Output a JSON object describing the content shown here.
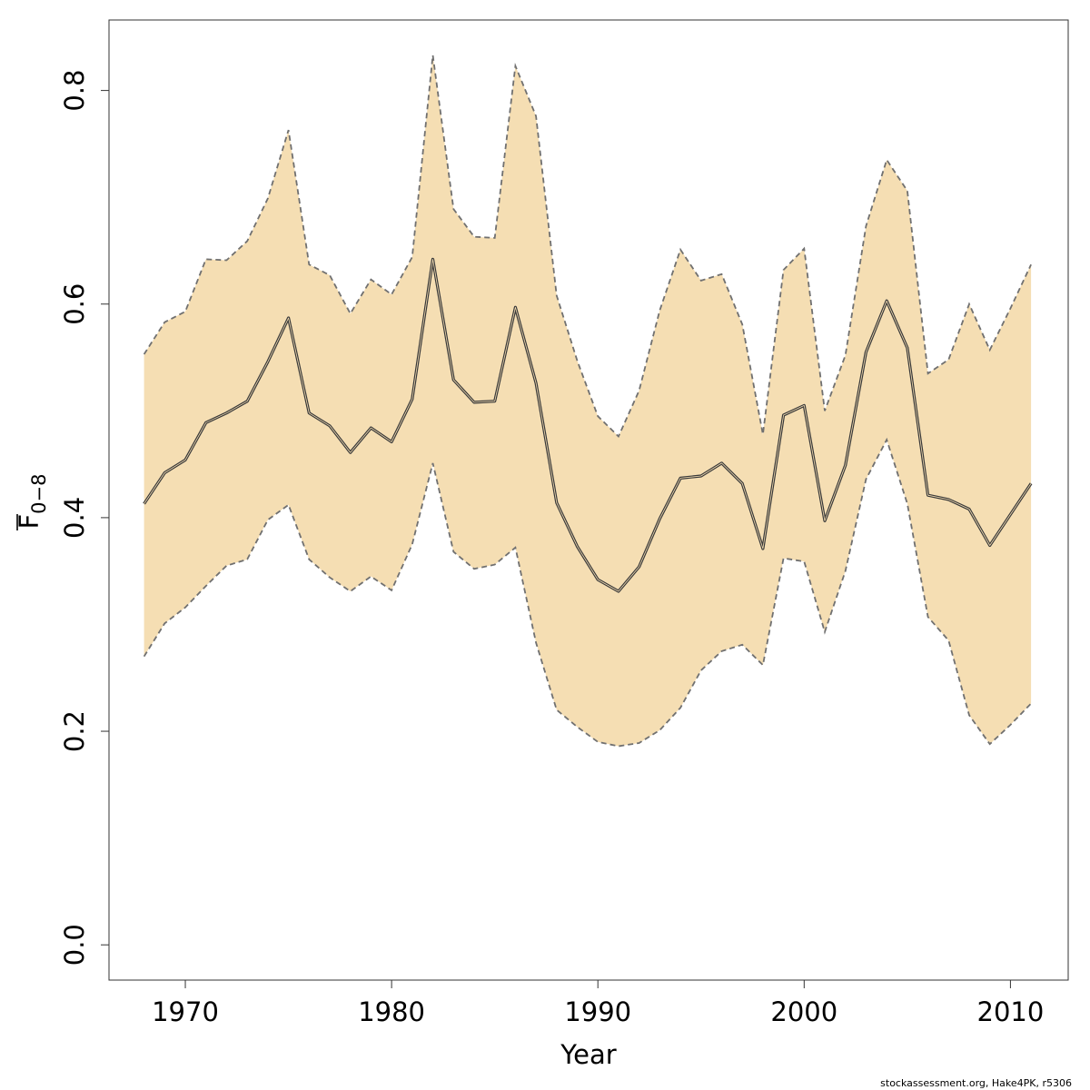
{
  "chart_data": {
    "type": "area",
    "title": "",
    "xlabel": "Year",
    "ylabel_main": "F",
    "ylabel_sub": "0−8",
    "xlim": [
      1966.3,
      2012.8
    ],
    "ylim": [
      -0.033,
      0.866
    ],
    "xticks": [
      1970,
      1980,
      1990,
      2000,
      2010
    ],
    "xtick_labels": [
      "1970",
      "1980",
      "1990",
      "2000",
      "2010"
    ],
    "yticks": [
      0.0,
      0.2,
      0.4,
      0.6,
      0.8
    ],
    "ytick_labels": [
      "0.0",
      "0.2",
      "0.4",
      "0.6",
      "0.8"
    ],
    "grid": false,
    "band_color": "#F5DEB3",
    "median_color": "#3a3a3a",
    "bound_color": "#707070",
    "x": [
      1968,
      1969,
      1970,
      1971,
      1972,
      1973,
      1974,
      1975,
      1976,
      1977,
      1978,
      1979,
      1980,
      1981,
      1982,
      1983,
      1984,
      1985,
      1986,
      1987,
      1988,
      1989,
      1990,
      1991,
      1992,
      1993,
      1994,
      1995,
      1996,
      1997,
      1998,
      1999,
      2000,
      2001,
      2002,
      2003,
      2004,
      2005,
      2006,
      2007,
      2008,
      2009,
      2010,
      2011
    ],
    "series": [
      {
        "name": "median",
        "values": [
          0.413,
          0.442,
          0.454,
          0.489,
          0.498,
          0.509,
          0.546,
          0.587,
          0.498,
          0.486,
          0.461,
          0.484,
          0.471,
          0.511,
          0.642,
          0.529,
          0.508,
          0.509,
          0.597,
          0.526,
          0.414,
          0.373,
          0.342,
          0.331,
          0.354,
          0.399,
          0.437,
          0.439,
          0.451,
          0.432,
          0.371,
          0.496,
          0.505,
          0.397,
          0.449,
          0.555,
          0.603,
          0.559,
          0.421,
          0.417,
          0.408,
          0.374,
          0.403,
          0.432
        ]
      },
      {
        "name": "upper",
        "values": [
          0.553,
          0.583,
          0.593,
          0.642,
          0.641,
          0.659,
          0.699,
          0.763,
          0.637,
          0.627,
          0.591,
          0.623,
          0.609,
          0.644,
          0.833,
          0.689,
          0.663,
          0.662,
          0.823,
          0.776,
          0.608,
          0.547,
          0.495,
          0.476,
          0.519,
          0.594,
          0.651,
          0.622,
          0.628,
          0.581,
          0.478,
          0.632,
          0.652,
          0.5,
          0.552,
          0.673,
          0.735,
          0.706,
          0.535,
          0.548,
          0.6,
          0.557,
          0.596,
          0.637
        ]
      },
      {
        "name": "lower",
        "values": [
          0.27,
          0.301,
          0.316,
          0.336,
          0.355,
          0.361,
          0.398,
          0.412,
          0.361,
          0.344,
          0.331,
          0.345,
          0.332,
          0.375,
          0.451,
          0.368,
          0.352,
          0.356,
          0.372,
          0.283,
          0.22,
          0.204,
          0.19,
          0.186,
          0.189,
          0.201,
          0.222,
          0.257,
          0.275,
          0.281,
          0.262,
          0.362,
          0.359,
          0.293,
          0.35,
          0.436,
          0.473,
          0.413,
          0.307,
          0.285,
          0.215,
          0.188,
          0.206,
          0.226
        ]
      }
    ]
  },
  "credit": "stockassessment.org, Hake4PK, r5306"
}
